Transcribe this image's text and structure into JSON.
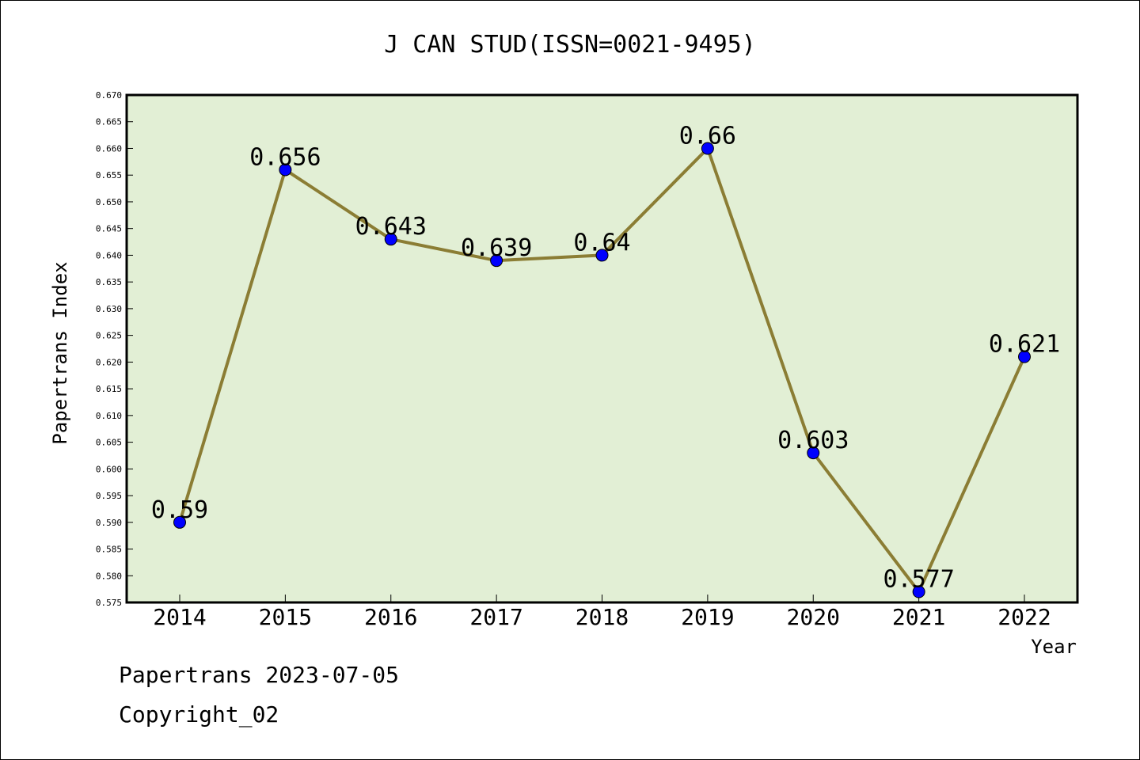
{
  "chart_data": {
    "type": "line",
    "title": "J CAN STUD(ISSN=0021-9495)",
    "xlabel": "Year",
    "ylabel": "Papertrans Index",
    "categories": [
      "2014",
      "2015",
      "2016",
      "2017",
      "2018",
      "2019",
      "2020",
      "2021",
      "2022"
    ],
    "series": [
      {
        "values": [
          0.59,
          0.656,
          0.643,
          0.639,
          0.64,
          0.66,
          0.603,
          0.577,
          0.621
        ],
        "labels": [
          "0.59",
          "0.656",
          "0.643",
          "0.639",
          "0.64",
          "0.66",
          "0.603",
          "0.577",
          "0.621"
        ]
      }
    ],
    "ylim": [
      0.575,
      0.67
    ],
    "ytick_step": 0.005,
    "grid": false,
    "colors": {
      "plot_bg": "#e2efd5",
      "line": "#8b7d34",
      "marker": "#0000ff"
    }
  },
  "footer": {
    "line1": "Papertrans 2023-07-05",
    "line2": "Copyright_02"
  }
}
